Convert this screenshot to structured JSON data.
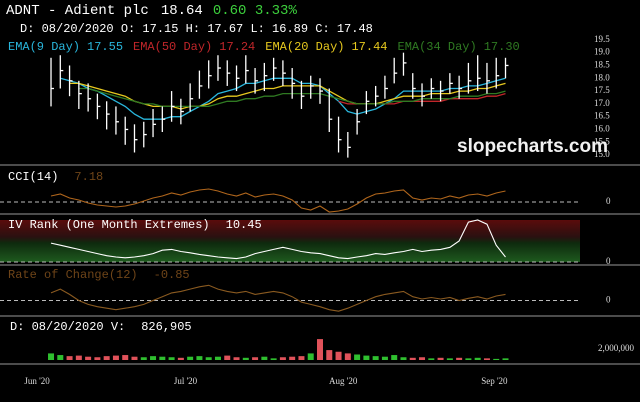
{
  "chart_data": {
    "type": "candlestick",
    "title": "ADNT - Adient plc",
    "last_price": "18.64",
    "change": "0.60 3.33%",
    "ohlc_line": "D: 08/20/2020 O: 17.15 H: 17.67 L: 16.89 C: 17.48",
    "watermark": "slopecharts.com",
    "color": "#ffffff",
    "xlim": [
      -5.5,
      63.5
    ],
    "xticks": [
      {
        "value": -1.5,
        "label": "Jun '20"
      },
      {
        "value": 14.5,
        "label": "Jul '20"
      },
      {
        "value": 31.5,
        "label": "Aug '20"
      },
      {
        "value": 47.8,
        "label": "Sep '20"
      }
    ],
    "ylim": [
      14.65,
      20.98
    ],
    "yticks": [
      {
        "value": 15,
        "label": "15.0"
      },
      15.5,
      {
        "value": 16,
        "label": "16.0"
      },
      16.5,
      {
        "value": 17,
        "label": "17.0"
      },
      17.5,
      {
        "value": 18,
        "label": "18.0"
      },
      18.5,
      {
        "value": 19,
        "label": "19.0"
      },
      19.5
    ],
    "high": [
      18.8,
      18.9,
      18.5,
      17.9,
      17.8,
      17.4,
      17.1,
      16.9,
      16.5,
      16.2,
      16.3,
      16.8,
      16.9,
      17.5,
      17.2,
      17.8,
      18.3,
      18.7,
      18.9,
      18.7,
      18.5,
      18.9,
      18.4,
      18.6,
      18.8,
      18.7,
      18.4,
      17.9,
      18.1,
      18.0,
      17.6,
      16.5,
      15.9,
      16.8,
      17.5,
      17.7,
      18.1,
      18.8,
      19.0,
      18.2,
      17.8,
      18.0,
      17.9,
      18.2,
      18.1,
      18.6,
      18.9,
      18.6,
      18.8,
      18.8
    ],
    "low": [
      16.9,
      17.6,
      17.3,
      16.8,
      16.7,
      16.4,
      16.0,
      15.8,
      15.4,
      15.1,
      15.3,
      15.7,
      15.9,
      16.3,
      16.2,
      16.7,
      17.2,
      17.6,
      17.9,
      17.7,
      17.5,
      17.8,
      17.4,
      17.5,
      17.9,
      17.7,
      17.2,
      16.8,
      17.2,
      17.0,
      15.9,
      15.1,
      14.9,
      15.8,
      16.6,
      16.9,
      17.2,
      17.8,
      18.1,
      17.2,
      16.9,
      17.2,
      17.1,
      17.4,
      17.2,
      17.4,
      17.5,
      17.4,
      17.6,
      18.0
    ],
    "close": [
      17.6,
      18.3,
      17.9,
      17.4,
      17.2,
      16.9,
      16.6,
      16.3,
      16.0,
      15.6,
      15.8,
      16.2,
      16.4,
      16.9,
      16.7,
      17.2,
      17.7,
      18.1,
      18.4,
      18.2,
      18.0,
      18.3,
      17.9,
      18.1,
      18.4,
      18.2,
      17.8,
      17.3,
      17.7,
      17.5,
      16.4,
      15.6,
      15.3,
      16.3,
      17.1,
      17.3,
      17.6,
      18.2,
      18.6,
      17.6,
      17.3,
      17.6,
      17.5,
      17.8,
      17.6,
      17.9,
      18.0,
      17.9,
      18.1,
      18.5
    ],
    "series": [
      {
        "name": "EMA(9 Day)",
        "value_label": "17.55",
        "color": "#29b6dc",
        "values": [
          null,
          18.0,
          17.9,
          17.8,
          17.6,
          17.5,
          17.3,
          17.1,
          16.9,
          16.6,
          16.4,
          16.4,
          16.4,
          16.5,
          16.5,
          16.7,
          16.9,
          17.1,
          17.4,
          17.5,
          17.6,
          17.8,
          17.8,
          17.9,
          18.0,
          18.0,
          18.0,
          17.8,
          17.8,
          17.7,
          17.4,
          17.1,
          16.7,
          16.6,
          16.7,
          16.8,
          17.0,
          17.2,
          17.5,
          17.5,
          17.5,
          17.5,
          17.5,
          17.6,
          17.6,
          17.7,
          17.7,
          17.8,
          17.9,
          18.0
        ]
      },
      {
        "name": "EMA(50 Day)",
        "value_label": "17.24",
        "color": "#c0262a",
        "values": [
          null,
          null,
          null,
          null,
          null,
          null,
          null,
          null,
          null,
          null,
          null,
          null,
          null,
          null,
          null,
          null,
          null,
          null,
          null,
          null,
          null,
          null,
          null,
          null,
          null,
          null,
          null,
          null,
          null,
          null,
          null,
          17.1,
          17.0,
          17.0,
          17.0,
          17.0,
          17.0,
          17.0,
          17.1,
          17.1,
          17.1,
          17.1,
          17.1,
          17.2,
          17.2,
          17.2,
          17.2,
          17.3,
          17.3,
          17.4
        ]
      },
      {
        "name": "EMA(20 Day)",
        "value_label": "17.44",
        "color": "#e6c81e",
        "values": [
          null,
          null,
          17.8,
          17.8,
          17.7,
          17.6,
          17.5,
          17.4,
          17.3,
          17.1,
          17.0,
          16.9,
          16.9,
          16.9,
          16.8,
          16.9,
          16.9,
          17.0,
          17.2,
          17.3,
          17.3,
          17.4,
          17.5,
          17.6,
          17.6,
          17.7,
          17.7,
          17.7,
          17.7,
          17.7,
          17.5,
          17.3,
          17.1,
          17.0,
          17.0,
          17.0,
          17.1,
          17.2,
          17.3,
          17.3,
          17.3,
          17.4,
          17.4,
          17.4,
          17.5,
          17.5,
          17.6,
          17.6,
          17.7,
          17.8
        ]
      },
      {
        "name": "EMA(34 Day)",
        "value_label": "17.30",
        "color": "#2f7a22",
        "values": [
          null,
          null,
          null,
          17.6,
          17.6,
          17.5,
          17.4,
          17.3,
          17.2,
          17.1,
          17.0,
          17.0,
          16.9,
          16.9,
          16.9,
          16.9,
          16.9,
          16.9,
          17.0,
          17.1,
          17.1,
          17.2,
          17.2,
          17.3,
          17.3,
          17.4,
          17.4,
          17.4,
          17.4,
          17.4,
          17.3,
          17.2,
          17.1,
          17.0,
          17.0,
          17.0,
          17.0,
          17.1,
          17.1,
          17.1,
          17.2,
          17.2,
          17.2,
          17.2,
          17.3,
          17.3,
          17.3,
          17.4,
          17.4,
          17.5
        ]
      }
    ],
    "indicators": [
      {
        "name": "CCI(14)",
        "value_label": "7.18",
        "name_color": "#ffffff",
        "value_color": "#6e4418",
        "color": "#b0661c",
        "ylim": [
          -100,
          300
        ],
        "yticks": [
          0
        ],
        "values": [
          60,
          80,
          40,
          20,
          -10,
          -30,
          -40,
          -50,
          -40,
          -20,
          10,
          40,
          60,
          90,
          70,
          100,
          120,
          130,
          110,
          80,
          60,
          90,
          50,
          70,
          80,
          60,
          20,
          -60,
          -80,
          -40,
          -100,
          -90,
          -70,
          -20,
          40,
          80,
          90,
          110,
          120,
          40,
          20,
          40,
          30,
          60,
          40,
          70,
          80,
          60,
          90,
          110
        ]
      },
      {
        "name": "IV Rank (One Month Extremes)",
        "value_label": "10.45",
        "name_color": "#ffffff",
        "value_color": "#ffffff",
        "color": "#ffffff",
        "ylim": [
          0,
          100
        ],
        "yticks": [
          0
        ],
        "values": [
          45,
          40,
          35,
          30,
          25,
          20,
          15,
          12,
          10,
          12,
          15,
          20,
          28,
          30,
          25,
          22,
          18,
          15,
          12,
          10,
          8,
          12,
          20,
          25,
          30,
          35,
          30,
          25,
          22,
          20,
          15,
          10,
          8,
          12,
          15,
          20,
          18,
          22,
          25,
          30,
          25,
          28,
          30,
          35,
          50,
          95,
          100,
          90,
          40,
          12
        ]
      },
      {
        "name": "Rate of Change(12)",
        "value_label": "-0.85",
        "name_color": "#6e4418",
        "value_color": "#6e4418",
        "color": "#8a5a20",
        "ylim": [
          -15,
          40
        ],
        "yticks": [
          0
        ],
        "values": [
          10,
          15,
          8,
          0,
          -5,
          -8,
          -10,
          -12,
          -10,
          -8,
          -5,
          0,
          5,
          10,
          12,
          15,
          18,
          20,
          15,
          12,
          10,
          12,
          8,
          10,
          12,
          10,
          5,
          -2,
          -5,
          -8,
          -12,
          -14,
          -10,
          -5,
          0,
          5,
          8,
          10,
          12,
          5,
          2,
          4,
          2,
          4,
          0,
          3,
          5,
          2,
          6,
          8
        ]
      }
    ],
    "volume": {
      "label": "D: 08/20/2020 V:",
      "value_label": "826,905",
      "up_color": "#2fbf2f",
      "down_color": "#e0525a",
      "ylim": [
        0,
        4000000
      ],
      "yticks": [
        {
          "value": 2000000,
          "label": "2,000,000"
        }
      ],
      "values": [
        1200000,
        900000,
        700000,
        800000,
        600000,
        500000,
        700000,
        800000,
        900000,
        600000,
        500000,
        700000,
        600000,
        500000,
        400000,
        600000,
        700000,
        500000,
        600000,
        800000,
        500000,
        400000,
        500000,
        600000,
        300000,
        500000,
        600000,
        700000,
        1200000,
        3800000,
        1800000,
        1500000,
        1200000,
        1000000,
        800000,
        700000,
        600000,
        900000,
        500000,
        400000,
        500000,
        300000,
        400000,
        300000,
        400000,
        300000,
        400000,
        300000,
        200000,
        300000
      ]
    }
  }
}
